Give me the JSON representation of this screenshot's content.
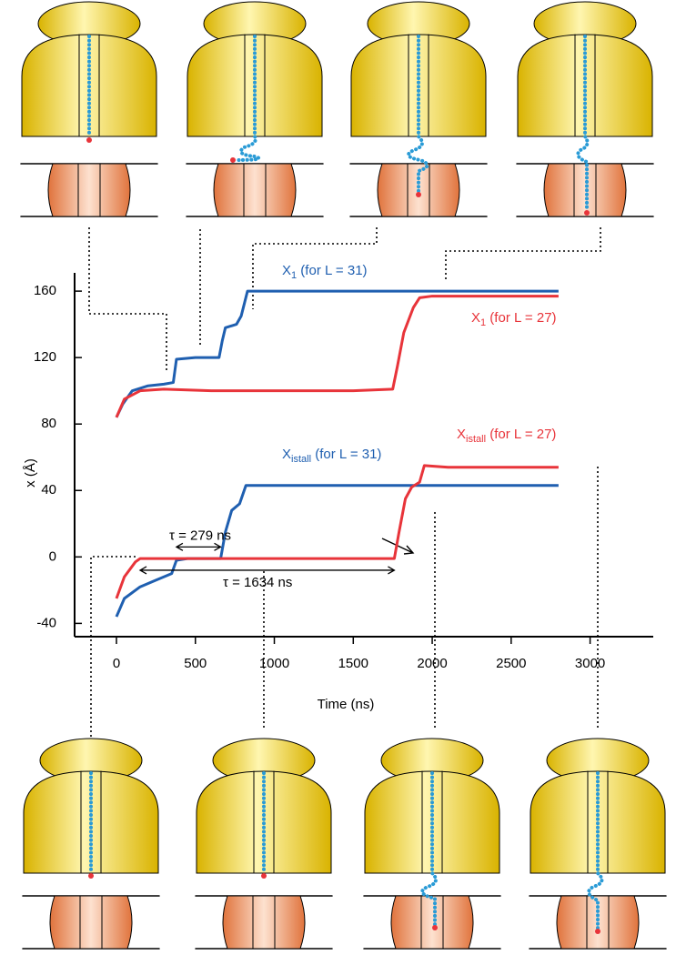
{
  "chart_data": {
    "type": "line",
    "x_label": "Time (ns)",
    "y_label": "x (Å)",
    "xlim": [
      -265,
      3400
    ],
    "ylim": [
      -48,
      171
    ],
    "xticks": [
      0,
      500,
      1000,
      1500,
      2000,
      2500,
      3000
    ],
    "yticks": [
      -40,
      0,
      40,
      80,
      120,
      160
    ],
    "series": [
      {
        "label": {
          "main": "X",
          "sub": "1",
          "rest": " (for L = 31)"
        },
        "color": "#1f5fb0",
        "x": [
          0,
          40,
          100,
          200,
          300,
          360,
          380,
          500,
          650,
          670,
          690,
          760,
          790,
          830,
          900,
          1200,
          1500,
          1800,
          2100,
          2400,
          2800
        ],
        "values": [
          84,
          92,
          100,
          103,
          104,
          105,
          119,
          120,
          120,
          130,
          138,
          140,
          145,
          160,
          160,
          160,
          160,
          160,
          160,
          160,
          160
        ]
      },
      {
        "label": {
          "main": "X",
          "sub": "1",
          "rest": " (for L = 27)"
        },
        "color": "#e8343a",
        "x": [
          0,
          50,
          150,
          300,
          600,
          900,
          1200,
          1500,
          1750,
          1780,
          1820,
          1880,
          1920,
          2000,
          2300,
          2600,
          2800
        ],
        "values": [
          84,
          95,
          100,
          101,
          100,
          100,
          100,
          100,
          101,
          115,
          135,
          150,
          156,
          157,
          157,
          157,
          157
        ]
      },
      {
        "label": {
          "main": "X",
          "sub": "istall",
          "rest": " (for L = 31)"
        },
        "color": "#1f5fb0",
        "x": [
          0,
          50,
          150,
          250,
          350,
          380,
          450,
          600,
          660,
          690,
          730,
          780,
          820,
          900,
          1200,
          1500,
          1800,
          2100,
          2400,
          2800
        ],
        "values": [
          -36,
          -25,
          -18,
          -14,
          -10,
          -2,
          -1,
          -1,
          -1,
          15,
          28,
          32,
          43,
          43,
          43,
          43,
          43,
          43,
          43,
          43
        ]
      },
      {
        "label": {
          "main": "X",
          "sub": "istall",
          "rest": " (for L = 27)"
        },
        "color": "#e8343a",
        "x": [
          0,
          50,
          120,
          150,
          300,
          600,
          900,
          1200,
          1500,
          1760,
          1790,
          1830,
          1870,
          1920,
          1950,
          2100,
          2400,
          2800
        ],
        "values": [
          -25,
          -12,
          -3,
          -1,
          -1,
          -1,
          -1,
          -1,
          -1,
          -1,
          15,
          35,
          42,
          45,
          55,
          54,
          54,
          54
        ]
      }
    ],
    "annotations": [
      "τ = 279 ns",
      "τ = 1634 ns"
    ]
  }
}
